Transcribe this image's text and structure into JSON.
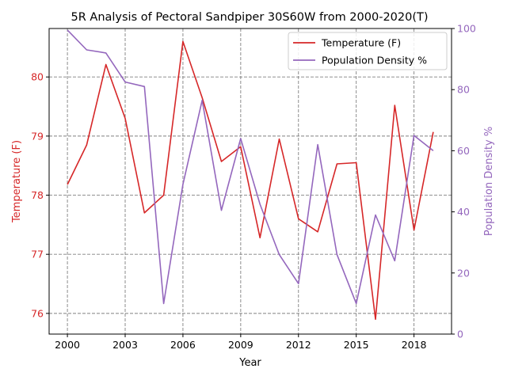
{
  "chart_data": {
    "type": "line",
    "title": "5R Analysis of Pectoral Sandpiper 30S60W from 2000-2020(T)",
    "xlabel": "Year",
    "x": [
      2000,
      2001,
      2002,
      2003,
      2004,
      2005,
      2006,
      2007,
      2008,
      2009,
      2010,
      2011,
      2012,
      2013,
      2014,
      2015,
      2016,
      2017,
      2018,
      2019
    ],
    "x_ticks": [
      "2000",
      "2003",
      "2006",
      "2009",
      "2012",
      "2015",
      "2018"
    ],
    "x_tick_values": [
      2000,
      2003,
      2006,
      2009,
      2012,
      2015,
      2018
    ],
    "xlim": [
      1999.05,
      2019.95
    ],
    "grid": true,
    "legend_position": "top-right",
    "left_axis": {
      "label": "Temperature (F)",
      "color": "#d62728",
      "ylim": [
        75.65,
        80.82
      ],
      "ticks": [
        "76",
        "77",
        "78",
        "79",
        "80"
      ],
      "tick_values": [
        76,
        77,
        78,
        79,
        80
      ]
    },
    "right_axis": {
      "label": "Population Density %",
      "color": "#9467bd",
      "ylim": [
        0,
        100
      ],
      "ticks": [
        "0",
        "20",
        "40",
        "60",
        "80",
        "100"
      ],
      "tick_values": [
        0,
        20,
        40,
        60,
        80,
        100
      ]
    },
    "series": [
      {
        "name": "Temperature (F)",
        "axis": "left",
        "color": "#d62728",
        "values": [
          78.18,
          78.85,
          80.21,
          79.3,
          77.7,
          78.0,
          80.6,
          79.65,
          78.57,
          78.82,
          77.28,
          78.95,
          77.6,
          77.38,
          78.53,
          78.55,
          75.9,
          79.52,
          77.41,
          79.07
        ]
      },
      {
        "name": "Population Density %",
        "axis": "right",
        "color": "#9467bd",
        "values": [
          99.5,
          93.0,
          92.0,
          82.5,
          81.0,
          10.0,
          49.0,
          76.5,
          40.5,
          64.0,
          42.5,
          26.0,
          16.5,
          62.0,
          26.0,
          10.0,
          39.0,
          24.0,
          65.0,
          60.0
        ]
      }
    ]
  }
}
